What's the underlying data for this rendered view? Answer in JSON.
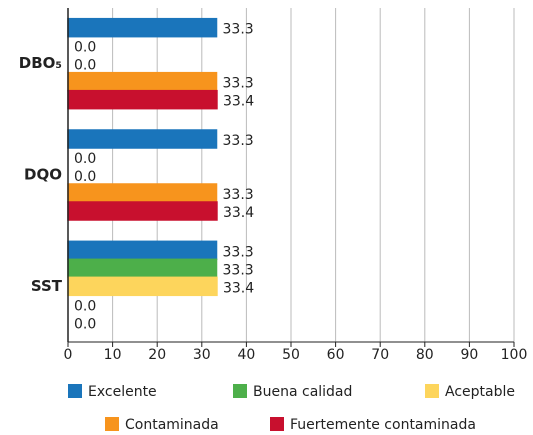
{
  "chart_data": {
    "type": "hbar",
    "categories": [
      "DBO₅",
      "DQO",
      "SST"
    ],
    "series": [
      {
        "name": "Excelente",
        "color": "#1a75bb",
        "values": [
          33.3,
          33.3,
          33.3
        ],
        "value_labels": [
          "33.3",
          "33.3",
          "33.3"
        ]
      },
      {
        "name": "Buena calidad",
        "color": "#4daf4a",
        "values": [
          0,
          0,
          33.3
        ],
        "value_labels": [
          "0.0",
          "0.0",
          "33.3"
        ]
      },
      {
        "name": "Aceptable",
        "color": "#fdd55c",
        "values": [
          0,
          0,
          33.4
        ],
        "value_labels": [
          "0.0",
          "0.0",
          "33.4"
        ]
      },
      {
        "name": "Contaminada",
        "color": "#f7941d",
        "values": [
          33.3,
          33.3,
          0
        ],
        "value_labels": [
          "33.3",
          "33.3",
          "0.0"
        ]
      },
      {
        "name": "Fuertemente contaminada",
        "color": "#c8102e",
        "values": [
          33.4,
          33.4,
          0
        ],
        "value_labels": [
          "33.4",
          "33.4",
          "0.0"
        ]
      }
    ],
    "xlim": [
      0,
      100
    ],
    "xticks": [
      0,
      10,
      20,
      30,
      40,
      50,
      60,
      70,
      80,
      90,
      100
    ],
    "grid": true
  }
}
